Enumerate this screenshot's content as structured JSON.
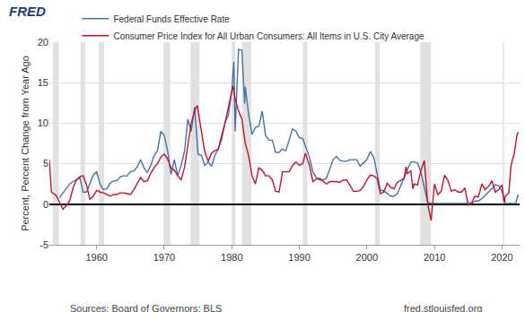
{
  "chart_data": {
    "type": "line",
    "logo": "FRED",
    "y_label": "Percent, Percent Change from Year Ago",
    "sources": "Sources: Board of Governors; BLS",
    "site": "fred.stlouisfed.org",
    "legend": "top left",
    "grid": true,
    "xlim": [
      1953.0,
      2022.6
    ],
    "xticks": [
      1960,
      1970,
      1980,
      1990,
      2000,
      2010,
      2020
    ],
    "ylim": [
      -5,
      20
    ],
    "yticks": [
      -5,
      0,
      5,
      10,
      15,
      20
    ],
    "recessions": [
      [
        1953.5,
        1954.4
      ],
      [
        1957.6,
        1958.3
      ],
      [
        1960.3,
        1961.1
      ],
      [
        1969.9,
        1970.9
      ],
      [
        1973.9,
        1975.2
      ],
      [
        1980.0,
        1980.5
      ],
      [
        1981.5,
        1982.9
      ],
      [
        1990.5,
        1991.2
      ],
      [
        2001.2,
        2001.9
      ],
      [
        2007.9,
        2009.5
      ],
      [
        2020.1,
        2020.3
      ]
    ],
    "series": [
      {
        "name": "Federal Funds Effective Rate",
        "color": "#4572a7",
        "x": [
          1954.5,
          1955.0,
          1955.5,
          1956.0,
          1956.5,
          1957.0,
          1957.5,
          1958.0,
          1958.5,
          1959.0,
          1959.5,
          1960.0,
          1960.5,
          1961.0,
          1961.5,
          1962.0,
          1962.5,
          1963.0,
          1963.5,
          1964.0,
          1964.5,
          1965.0,
          1965.5,
          1966.0,
          1966.5,
          1967.0,
          1967.5,
          1968.0,
          1968.5,
          1969.0,
          1969.5,
          1970.0,
          1970.5,
          1971.0,
          1971.5,
          1972.0,
          1972.5,
          1973.0,
          1973.5,
          1974.0,
          1974.5,
          1975.0,
          1975.5,
          1976.0,
          1976.5,
          1977.0,
          1977.5,
          1978.0,
          1978.5,
          1979.0,
          1979.5,
          1980.0,
          1980.3,
          1980.5,
          1980.9,
          1981.0,
          1981.5,
          1981.9,
          1982.0,
          1982.5,
          1983.0,
          1983.5,
          1984.0,
          1984.5,
          1985.0,
          1985.5,
          1986.0,
          1986.5,
          1987.0,
          1987.5,
          1988.0,
          1988.5,
          1989.0,
          1989.5,
          1990.0,
          1990.5,
          1991.0,
          1991.5,
          1992.0,
          1992.5,
          1993.0,
          1993.5,
          1994.0,
          1994.5,
          1995.0,
          1995.5,
          1996.0,
          1996.5,
          1997.0,
          1997.5,
          1998.0,
          1998.5,
          1999.0,
          1999.5,
          2000.0,
          2000.5,
          2001.0,
          2001.5,
          2002.0,
          2002.5,
          2003.0,
          2003.5,
          2004.0,
          2004.5,
          2005.0,
          2005.5,
          2006.0,
          2006.5,
          2007.0,
          2007.5,
          2008.0,
          2008.5,
          2009.0,
          2009.5,
          2010.0,
          2010.5,
          2011.0,
          2011.5,
          2012.0,
          2012.5,
          2013.0,
          2013.5,
          2014.0,
          2014.5,
          2015.0,
          2015.5,
          2016.0,
          2016.5,
          2017.0,
          2017.5,
          2018.0,
          2018.5,
          2019.0,
          2019.5,
          2020.0,
          2020.5,
          2021.0,
          2021.5,
          2022.0,
          2022.4
        ],
        "values": [
          0.8,
          1.4,
          2.0,
          2.5,
          2.8,
          3.0,
          3.3,
          1.5,
          1.5,
          2.6,
          3.6,
          4.0,
          2.5,
          1.8,
          1.9,
          2.6,
          2.9,
          2.9,
          3.4,
          3.5,
          3.5,
          4.0,
          4.1,
          4.6,
          5.5,
          4.5,
          3.9,
          4.8,
          6.0,
          6.6,
          9.0,
          8.5,
          6.6,
          3.7,
          5.5,
          3.5,
          4.8,
          6.5,
          10.5,
          9.0,
          12.0,
          6.2,
          6.0,
          4.8,
          5.2,
          4.7,
          6.0,
          6.8,
          8.0,
          10.1,
          11.0,
          14.0,
          17.6,
          9.0,
          18.9,
          19.1,
          19.0,
          12.4,
          14.5,
          11.0,
          8.6,
          9.5,
          9.6,
          11.5,
          8.5,
          7.9,
          7.9,
          6.4,
          6.4,
          6.8,
          6.6,
          8.0,
          9.3,
          9.0,
          8.2,
          8.1,
          6.9,
          5.8,
          4.0,
          3.3,
          3.0,
          3.0,
          3.2,
          4.3,
          5.5,
          5.9,
          5.4,
          5.3,
          5.3,
          5.5,
          5.5,
          5.5,
          4.7,
          5.1,
          5.5,
          6.5,
          5.8,
          3.8,
          1.7,
          1.7,
          1.3,
          1.0,
          1.0,
          1.3,
          2.3,
          3.2,
          4.3,
          5.2,
          5.25,
          5.1,
          3.9,
          2.0,
          0.2,
          0.1,
          0.1,
          0.1,
          0.1,
          0.1,
          0.1,
          0.1,
          0.1,
          0.1,
          0.1,
          0.1,
          0.1,
          0.1,
          0.4,
          0.4,
          0.7,
          1.1,
          1.4,
          1.9,
          2.4,
          2.3,
          1.6,
          0.1,
          0.1,
          0.1,
          0.1,
          1.2
        ]
      },
      {
        "name": "Consumer Price Index for All Urban Consumers: All Items in U.S. City Average",
        "color": "#c8102e",
        "x": [
          1953.0,
          1953.3,
          1954.0,
          1954.5,
          1955.0,
          1955.5,
          1956.0,
          1956.5,
          1957.0,
          1957.5,
          1958.0,
          1958.5,
          1959.0,
          1959.5,
          1960.0,
          1960.5,
          1961.0,
          1961.5,
          1962.0,
          1962.5,
          1963.0,
          1963.5,
          1964.0,
          1964.5,
          1965.0,
          1965.5,
          1966.0,
          1966.5,
          1967.0,
          1967.5,
          1968.0,
          1968.5,
          1969.0,
          1969.5,
          1970.0,
          1970.5,
          1971.0,
          1971.5,
          1972.0,
          1972.5,
          1973.0,
          1973.5,
          1974.0,
          1974.5,
          1974.9,
          1975.5,
          1976.0,
          1976.5,
          1977.0,
          1977.5,
          1978.0,
          1978.5,
          1979.0,
          1979.5,
          1980.2,
          1980.5,
          1981.0,
          1981.5,
          1982.0,
          1982.5,
          1983.0,
          1983.5,
          1984.0,
          1984.5,
          1985.0,
          1985.5,
          1986.0,
          1986.5,
          1987.0,
          1987.5,
          1988.0,
          1988.5,
          1989.0,
          1989.5,
          1990.0,
          1990.5,
          1990.9,
          1991.5,
          1992.0,
          1992.5,
          1993.0,
          1993.5,
          1994.0,
          1994.5,
          1995.0,
          1995.5,
          1996.0,
          1996.5,
          1997.0,
          1997.5,
          1998.0,
          1998.5,
          1999.0,
          1999.5,
          2000.0,
          2000.5,
          2001.0,
          2001.5,
          2002.0,
          2002.5,
          2003.0,
          2003.5,
          2004.0,
          2004.5,
          2005.0,
          2005.5,
          2005.8,
          2006.0,
          2006.5,
          2006.8,
          2007.0,
          2007.5,
          2008.0,
          2008.5,
          2009.0,
          2009.5,
          2010.0,
          2010.5,
          2011.0,
          2011.5,
          2012.0,
          2012.5,
          2013.0,
          2013.5,
          2014.0,
          2014.5,
          2015.0,
          2015.5,
          2016.0,
          2016.5,
          2017.0,
          2017.5,
          2018.0,
          2018.5,
          2019.0,
          2019.5,
          2020.0,
          2020.3,
          2020.5,
          2021.0,
          2021.3,
          2021.5,
          2021.8,
          2022.0,
          2022.2,
          2022.4
        ],
        "values": [
          5.5,
          1.5,
          1.1,
          0.3,
          -0.6,
          -0.2,
          0.4,
          2.0,
          3.0,
          3.4,
          3.5,
          2.4,
          0.6,
          1.0,
          1.7,
          1.5,
          1.4,
          1.2,
          1.0,
          1.2,
          1.2,
          1.4,
          1.4,
          1.3,
          1.2,
          1.8,
          2.5,
          3.3,
          2.8,
          2.9,
          3.8,
          4.5,
          5.0,
          5.8,
          6.2,
          5.6,
          4.5,
          4.2,
          3.5,
          3.0,
          4.5,
          7.5,
          10.0,
          11.5,
          12.2,
          9.0,
          6.5,
          5.3,
          6.3,
          6.6,
          6.8,
          8.5,
          10.0,
          12.0,
          14.6,
          13.0,
          11.5,
          10.5,
          7.5,
          6.0,
          3.5,
          2.5,
          4.5,
          4.2,
          3.5,
          3.5,
          3.0,
          1.6,
          1.5,
          4.0,
          4.0,
          4.0,
          4.8,
          5.2,
          4.8,
          5.0,
          6.3,
          4.8,
          2.8,
          3.1,
          3.2,
          2.8,
          2.5,
          2.8,
          2.8,
          2.8,
          2.7,
          3.0,
          3.0,
          2.3,
          1.6,
          1.6,
          1.7,
          2.2,
          3.0,
          3.6,
          3.5,
          3.2,
          1.3,
          1.5,
          2.6,
          2.1,
          1.9,
          2.7,
          3.0,
          3.2,
          4.6,
          3.8,
          4.1,
          1.9,
          2.5,
          2.4,
          4.2,
          5.4,
          0.0,
          -2.0,
          2.5,
          1.2,
          1.6,
          3.6,
          2.9,
          1.6,
          1.8,
          1.5,
          1.5,
          2.0,
          -0.1,
          0.2,
          1.0,
          0.9,
          2.5,
          1.8,
          2.2,
          2.9,
          1.5,
          1.8,
          2.4,
          0.2,
          1.0,
          1.4,
          4.5,
          5.4,
          6.2,
          7.5,
          8.5,
          8.9
        ]
      }
    ]
  }
}
